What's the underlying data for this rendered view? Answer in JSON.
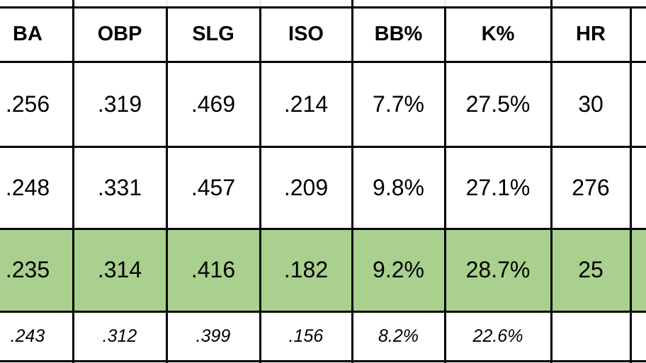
{
  "table": {
    "header": [
      "BA",
      "OBP",
      "SLG",
      "ISO",
      "BB%",
      "K%",
      "HR"
    ],
    "rows": [
      [
        ".256",
        ".319",
        ".469",
        ".214",
        "7.7%",
        "27.5%",
        "30"
      ],
      [
        ".248",
        ".331",
        ".457",
        ".209",
        "9.8%",
        "27.1%",
        "276"
      ],
      [
        ".235",
        ".314",
        ".416",
        ".182",
        "9.2%",
        "28.7%",
        "25"
      ],
      [
        ".243",
        ".312",
        ".399",
        ".156",
        "8.2%",
        "22.6%"
      ]
    ]
  }
}
